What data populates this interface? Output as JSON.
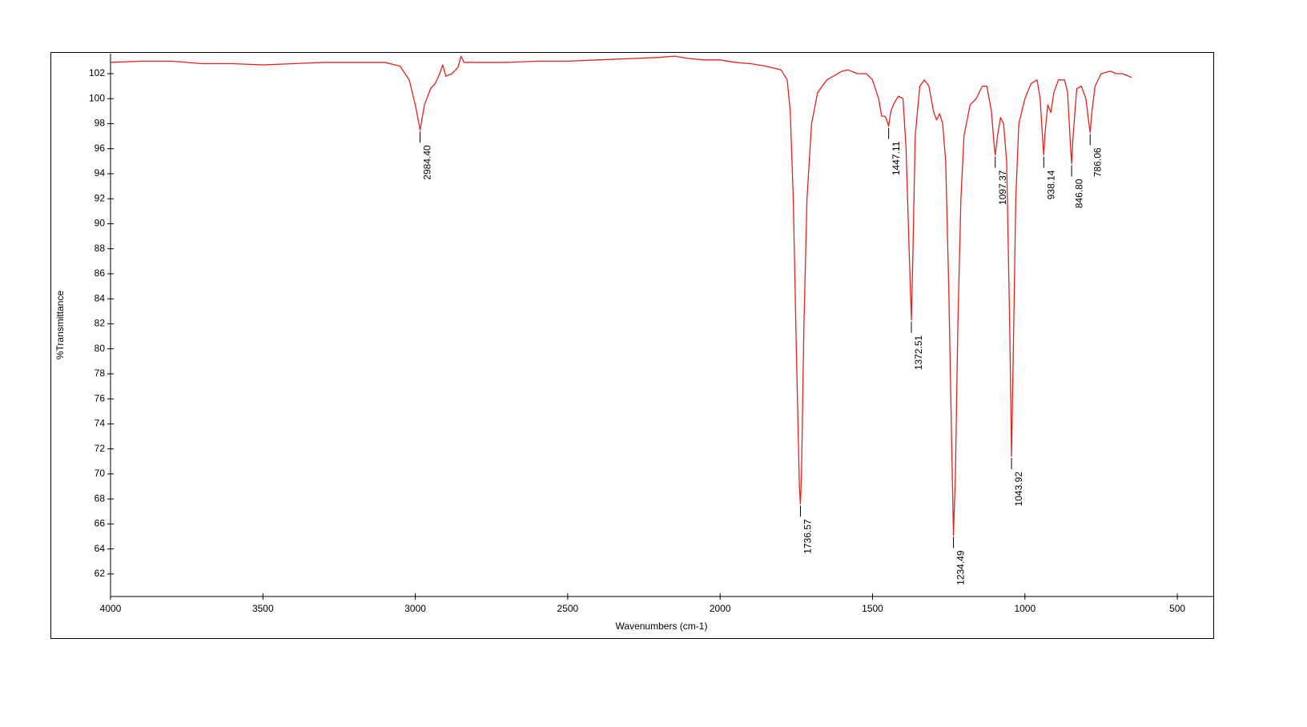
{
  "chart_data": {
    "type": "line",
    "color": "#e3231c",
    "x_label": "Wavenumbers (cm-1)",
    "y_label": "%Transmittance",
    "xlim": [
      4000,
      382
    ],
    "ylim": [
      60.2,
      103.6
    ],
    "xticks": [
      4000,
      3500,
      3000,
      2500,
      2000,
      1500,
      1000,
      500
    ],
    "yticks": [
      62,
      64,
      66,
      68,
      70,
      72,
      74,
      76,
      78,
      80,
      82,
      84,
      86,
      88,
      90,
      92,
      94,
      96,
      98,
      100,
      102
    ],
    "x": [
      4000,
      3900,
      3800,
      3700,
      3600,
      3500,
      3400,
      3300,
      3200,
      3100,
      3050,
      3020,
      3000,
      2984.4,
      2970,
      2950,
      2935,
      2920,
      2910,
      2900,
      2880,
      2860,
      2850,
      2840,
      2800,
      2700,
      2600,
      2500,
      2400,
      2300,
      2200,
      2150,
      2100,
      2050,
      2000,
      1950,
      1900,
      1850,
      1800,
      1780,
      1770,
      1760,
      1750,
      1740,
      1736.57,
      1733,
      1725,
      1715,
      1700,
      1680,
      1650,
      1600,
      1580,
      1550,
      1520,
      1500,
      1480,
      1470,
      1460,
      1455,
      1447.11,
      1440,
      1430,
      1415,
      1400,
      1390,
      1380,
      1372.51,
      1368,
      1360,
      1345,
      1330,
      1315,
      1300,
      1290,
      1280,
      1270,
      1260,
      1250,
      1240,
      1234.49,
      1228,
      1220,
      1210,
      1200,
      1180,
      1160,
      1140,
      1125,
      1110,
      1100,
      1097.37,
      1090,
      1080,
      1070,
      1060,
      1050,
      1043.92,
      1038,
      1030,
      1020,
      1000,
      980,
      960,
      950,
      940,
      938.14,
      935,
      925,
      915,
      905,
      890,
      870,
      860,
      850,
      846.8,
      842,
      830,
      815,
      800,
      790,
      786.06,
      780,
      770,
      750,
      720,
      700,
      680,
      660,
      650
    ],
    "values": [
      102.9,
      103,
      103,
      102.8,
      102.8,
      102.7,
      102.8,
      102.9,
      102.9,
      102.9,
      102.6,
      101.5,
      99.5,
      97.5,
      99.5,
      100.8,
      101.2,
      102,
      102.7,
      101.8,
      102,
      102.5,
      103.4,
      102.9,
      102.9,
      102.9,
      103,
      103,
      103.1,
      103.2,
      103.3,
      103.4,
      103.2,
      103.1,
      103.1,
      102.9,
      102.8,
      102.6,
      102.3,
      101.5,
      99,
      92,
      80,
      69,
      67.6,
      70,
      82,
      92,
      98,
      100.5,
      101.5,
      102.2,
      102.3,
      102,
      102,
      101.5,
      100,
      98.6,
      98.6,
      98.4,
      97.8,
      99,
      99.6,
      100.2,
      100,
      96,
      88,
      82.3,
      87,
      97,
      101,
      101.5,
      101,
      99,
      98.3,
      98.8,
      98,
      95,
      85,
      72,
      65.1,
      70,
      82,
      92,
      97,
      99.5,
      100,
      101,
      101,
      99,
      96,
      95.5,
      97,
      98.5,
      98,
      95,
      82,
      71.4,
      80,
      92,
      98,
      100,
      101.2,
      101.5,
      100,
      96,
      95.5,
      97,
      99.5,
      98.9,
      100.5,
      101.5,
      101.5,
      100.5,
      96,
      94.8,
      97,
      100.8,
      101,
      100,
      98,
      97.3,
      99,
      101,
      102,
      102.2,
      102,
      102,
      101.8,
      101.7
    ],
    "peaks": [
      {
        "x": 2984.4,
        "y": 97.5,
        "label": "2984.40"
      },
      {
        "x": 1736.57,
        "y": 67.6,
        "label": "1736.57"
      },
      {
        "x": 1447.11,
        "y": 97.8,
        "label": "1447.11"
      },
      {
        "x": 1372.51,
        "y": 82.3,
        "label": "1372.51"
      },
      {
        "x": 1234.49,
        "y": 65.1,
        "label": "1234.49"
      },
      {
        "x": 1097.37,
        "y": 95.5,
        "label": "1097.37"
      },
      {
        "x": 1043.92,
        "y": 71.4,
        "label": "1043.92"
      },
      {
        "x": 938.14,
        "y": 95.5,
        "label": "938.14"
      },
      {
        "x": 846.8,
        "y": 94.8,
        "label": "846.80"
      },
      {
        "x": 786.06,
        "y": 97.3,
        "label": "786.06"
      }
    ]
  }
}
